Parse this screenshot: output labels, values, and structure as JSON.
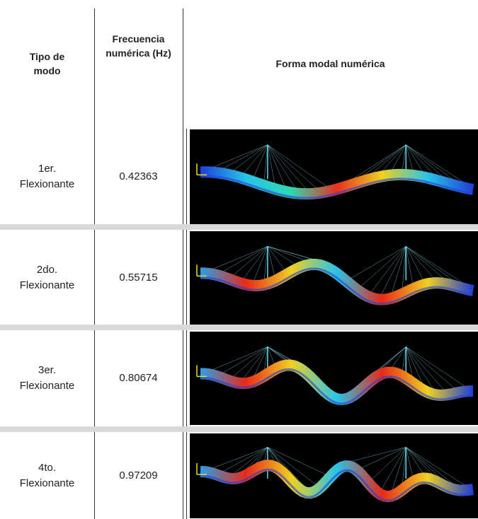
{
  "table": {
    "header": [
      "Tipo de modo",
      "Frecuencia numérica (Hz)",
      "Forma modal numérica"
    ],
    "rows": [
      [
        "1er. Flexionante",
        "0.42363"
      ],
      [
        "2do. Flexionante",
        "0.55715"
      ],
      [
        "3er. Flexionante",
        "0.80674"
      ],
      [
        "4to. Flexionante",
        "0.97209"
      ]
    ]
  }
}
